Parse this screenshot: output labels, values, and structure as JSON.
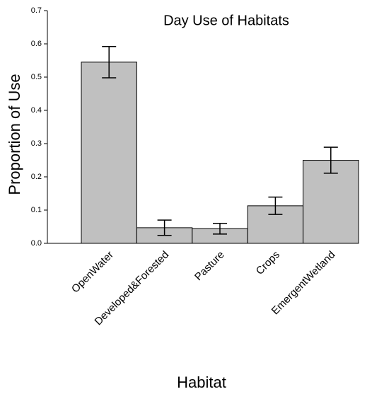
{
  "chart_data": {
    "type": "bar",
    "title": "Day Use of Habitats",
    "x_label": "Habitat",
    "y_label": "Proportion of Use",
    "categories": [
      "OpenWater",
      "Developed&Forested",
      "Pasture",
      "Crops",
      "EmergentWetland"
    ],
    "values": [
      0.545,
      0.047,
      0.044,
      0.113,
      0.25
    ],
    "errors": [
      0.047,
      0.023,
      0.016,
      0.026,
      0.039
    ],
    "color": "#c0c0c0",
    "ylim": [
      0,
      0.7
    ],
    "yticks": [
      {
        "value": 0,
        "label": "0.0"
      },
      0.1,
      0.2,
      0.3,
      0.4,
      0.5,
      0.6,
      0.7
    ]
  }
}
